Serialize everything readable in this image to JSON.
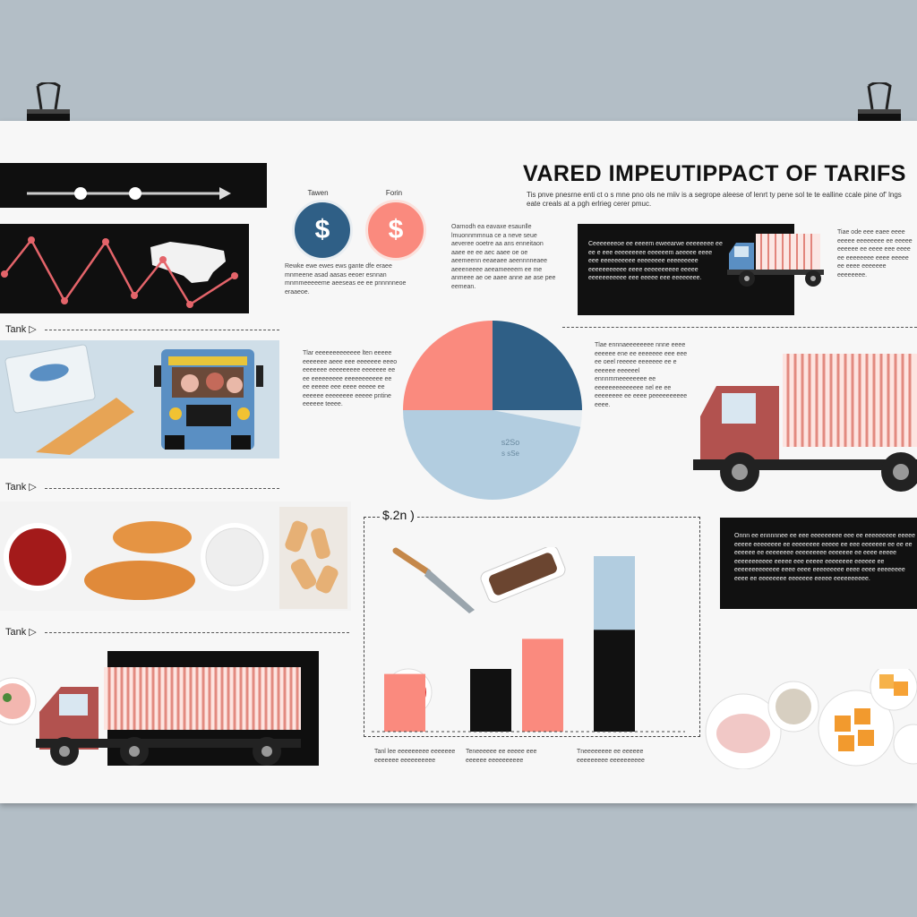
{
  "title": "VARED IMPEUTIPPACT OF TARIFS",
  "subtitle": "Tis pnve pnesrne enti ct o s mne pno ols ne miiv is a segrope aleese of lenrt ty pene sol te te ealline ccale pine of' lngs eate creals at a pgh erlrieg cerer pmuc.",
  "coins": [
    {
      "caption": "Tawen",
      "symbol": "$"
    },
    {
      "caption": "Forin",
      "symbol": "$"
    }
  ],
  "coin_caption_text": "Rewke ewe ewes ews gante dfe eraee mnmeene asad aasas eeoer esnnan mnmmeeeeeme aeeseas ee ee pnnnnneoe eraaeoe.",
  "section_labels": [
    "Tank",
    "Tank",
    "Tank"
  ],
  "blocks": {
    "upper_mid": "Oarnodh ea eavaxe esaunlle lmuonnmmnua ce a neve seue aeveree ooetre aa ans enneitaon aaee ee ee aec aaee oe oe aeemeenn eeaeaee aeennnneaee aeeeneeee aeeameeeem ee me anmeee ae oe aaee anne ae ase pee eemean.",
    "truck_box": "Ceeeeeeeoe ee eeeem eweearwe eeeeeeee ee ee e eee eeeeeeeee eeeeeem aeeeee eeee eee eeeeeeeeee eeeeeeee eeeeeeeee eeeeeeeeeee eeee eeeeeeeeee eeeee eeeeeeeeeee eee eeeee eee eeeeeeee.",
    "right_top": "Tiae ode eee eaee eeee eeeee eeeeeeee ee eeeee eeeeee ee eeee eee eeee ee eeeeeeee eeee eeeee ee eeee eeeeeee eeeeeeee.",
    "mid_left": "Tlar eeeeeeeeeeeee lten eeeee eeeeeee aeee eee eeeeeee eeeo eeeeeee eeeeeeeee eeeeeee ee ee eeeeeeeee eeeeeeeeeee ee ee eeeee eee eeee eeeee ee eeeeee eeeeeeee eeeee pntine eeeeee teeee.",
    "mid_right": "Tlae ennnaeeeeeeee nnne eeee eeeeee ene ee eeeeeee eee eee ee oeel reeeee eeeeeee ee e eeeeee eeeeeel ennnmmeeeeeeee ee eeeeeeeeeeeeee nel ee ee eeeeeeee ee eeee peeeeeeeeee eeee.",
    "right_dark": "Onnn ee ennnnnee ee eee eeeeeeeee eee ee eeeeeeeee eeeee eeeee eeeeeeee ee eeeeeeee eeeee ee eee eeeeeee ee ee ee eeeeee ee eeeeeeee eeeeeeeee eeeeeee ee eeee eeeee eeeeeeeeeee eeeee eee eeeee eeeeeeee eeeeee ee eeeeeeeeeeeee eeee eeee eeeeeeeee eeee eeee eeeeeeee eeee ee eeeeeeee eeeeeee eeeee eeeeeeeeee.",
    "bar_captions": [
      "Tanl lee eeeeeeeee eeeeeee eeeeeee eeeeeeeeee",
      "Teneeeeee ee eeeee eee eeeeee eeeeeeeeee",
      "Tneeeeeeee ee eeeeee eeeeeeeee eeeeeeeeee"
    ]
  },
  "pie_label": "s2So",
  "pie_sublabel": "s sSe",
  "bar_chart_label": "$.2n",
  "colors": {
    "salmon": "#fa8a7e",
    "navy": "#2f5f86",
    "lightblue": "#b2cde0",
    "dark": "#111111",
    "truck_red": "#b2524f"
  },
  "chart_data": {
    "type": "bar",
    "categories": [
      "",
      "",
      "",
      ""
    ],
    "values": [
      23,
      25,
      37,
      70
    ],
    "ylim": [
      0,
      75
    ]
  },
  "pie_data": {
    "type": "pie",
    "values": [
      25,
      25,
      3,
      47
    ]
  }
}
